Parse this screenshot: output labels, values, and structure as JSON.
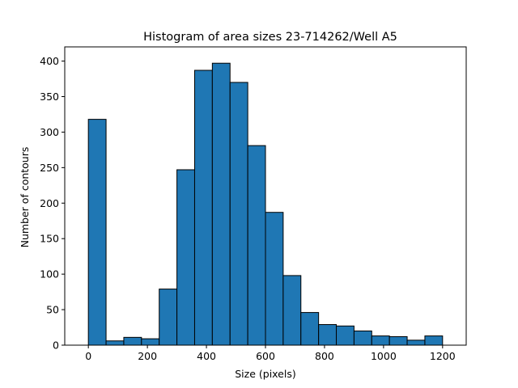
{
  "chart_data": {
    "type": "bar",
    "title": "Histogram of area sizes 23-714262/Well A5",
    "xlabel": "Size (pixels)",
    "ylabel": "Number of contours",
    "xlim": [
      -80,
      1280
    ],
    "ylim": [
      0,
      420
    ],
    "xticks": [
      0,
      200,
      400,
      600,
      800,
      1000,
      1200
    ],
    "yticks": [
      0,
      50,
      100,
      150,
      200,
      250,
      300,
      350,
      400
    ],
    "bin_width": 60,
    "bins": [
      {
        "x0": 0,
        "x1": 60,
        "value": 318
      },
      {
        "x0": 60,
        "x1": 120,
        "value": 6
      },
      {
        "x0": 120,
        "x1": 180,
        "value": 11
      },
      {
        "x0": 180,
        "x1": 240,
        "value": 9
      },
      {
        "x0": 240,
        "x1": 300,
        "value": 79
      },
      {
        "x0": 300,
        "x1": 360,
        "value": 247
      },
      {
        "x0": 360,
        "x1": 420,
        "value": 387
      },
      {
        "x0": 420,
        "x1": 480,
        "value": 397
      },
      {
        "x0": 480,
        "x1": 540,
        "value": 370
      },
      {
        "x0": 540,
        "x1": 600,
        "value": 281
      },
      {
        "x0": 600,
        "x1": 660,
        "value": 187
      },
      {
        "x0": 660,
        "x1": 720,
        "value": 98
      },
      {
        "x0": 720,
        "x1": 780,
        "value": 46
      },
      {
        "x0": 780,
        "x1": 840,
        "value": 29
      },
      {
        "x0": 840,
        "x1": 900,
        "value": 27
      },
      {
        "x0": 900,
        "x1": 960,
        "value": 20
      },
      {
        "x0": 960,
        "x1": 1020,
        "value": 13
      },
      {
        "x0": 1020,
        "x1": 1080,
        "value": 12
      },
      {
        "x0": 1080,
        "x1": 1140,
        "value": 7
      },
      {
        "x0": 1140,
        "x1": 1200,
        "value": 13
      }
    ],
    "bar_color": "#1f77b4",
    "edge_color": "#000000",
    "grid": false,
    "legend": "none"
  }
}
